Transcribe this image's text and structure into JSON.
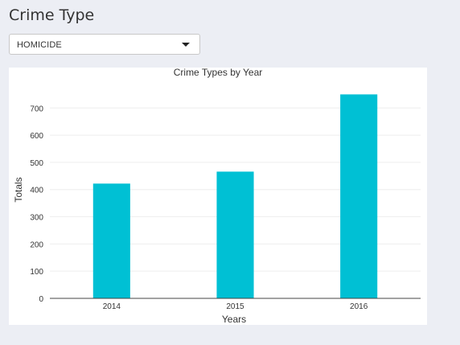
{
  "header": {
    "title": "Crime Type"
  },
  "filter": {
    "selected": "HOMICIDE",
    "caret_icon": "caret-down-icon"
  },
  "colors": {
    "bar": "#00c0d4",
    "background": "#eceef4",
    "gridline": "#eeeeee",
    "axis": "#444444"
  },
  "chart_data": {
    "type": "bar",
    "title": "Crime Types by Year",
    "xlabel": "Years",
    "ylabel": "Totals",
    "categories": [
      "2014",
      "2015",
      "2016"
    ],
    "values": [
      422,
      466,
      750
    ],
    "ylim": [
      0,
      760
    ],
    "yticks": [
      0,
      100,
      200,
      300,
      400,
      500,
      600,
      700
    ],
    "grid": true
  }
}
